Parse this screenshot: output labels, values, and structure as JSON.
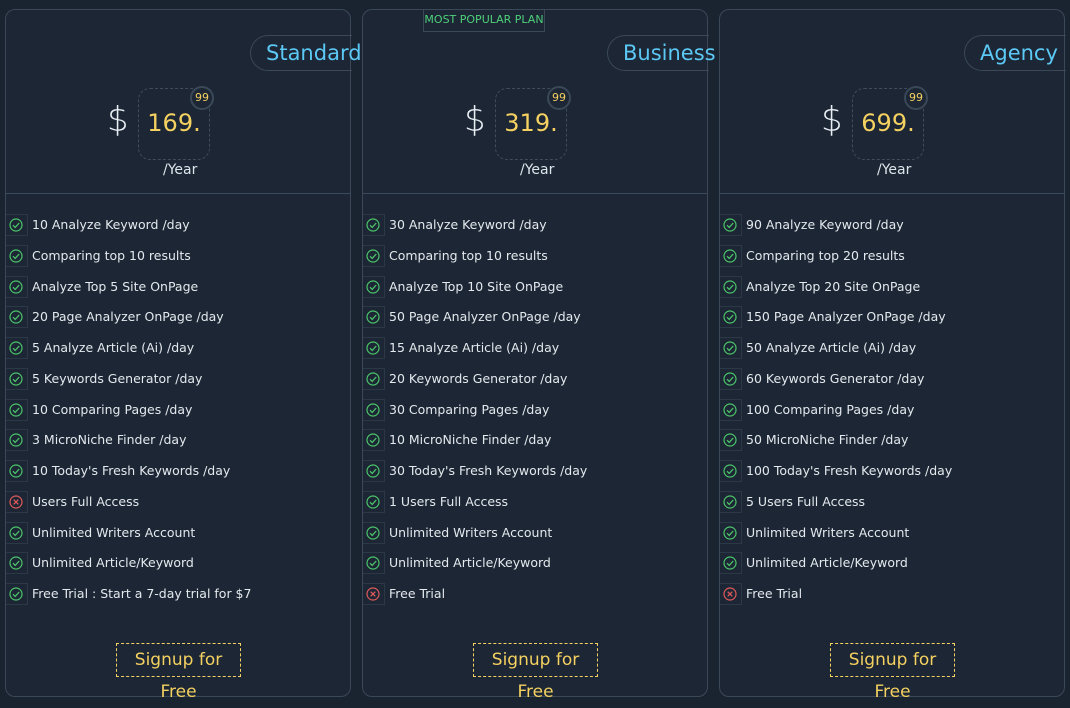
{
  "badge": "MOST POPULAR PLAN",
  "badge_plan": 1,
  "plans": [
    {
      "name": "Standard",
      "currency": "$",
      "price": "169.",
      "cents": "99",
      "period": "/Year",
      "button": "Signup for Free",
      "features": [
        {
          "text": "10 Analyze Keyword /day",
          "included": true
        },
        {
          "text": "Comparing top 10 results",
          "included": true
        },
        {
          "text": "Analyze Top 5 Site OnPage",
          "included": true
        },
        {
          "text": "20 Page Analyzer OnPage /day",
          "included": true
        },
        {
          "text": "5 Analyze Article (Ai) /day",
          "included": true
        },
        {
          "text": "5 Keywords Generator /day",
          "included": true
        },
        {
          "text": "10 Comparing Pages /day",
          "included": true
        },
        {
          "text": "3 MicroNiche Finder /day",
          "included": true
        },
        {
          "text": "10 Today's Fresh Keywords /day",
          "included": true
        },
        {
          "text": "Users Full Access",
          "included": false
        },
        {
          "text": "Unlimited Writers Account",
          "included": true
        },
        {
          "text": "Unlimited Article/Keyword",
          "included": true
        },
        {
          "text": "Free Trial : Start a 7-day trial for $7",
          "included": true
        }
      ]
    },
    {
      "name": "Business",
      "currency": "$",
      "price": "319.",
      "cents": "99",
      "period": "/Year",
      "button": "Signup for Free",
      "features": [
        {
          "text": "30 Analyze Keyword /day",
          "included": true
        },
        {
          "text": "Comparing top 10 results",
          "included": true
        },
        {
          "text": "Analyze Top 10 Site OnPage",
          "included": true
        },
        {
          "text": "50 Page Analyzer OnPage /day",
          "included": true
        },
        {
          "text": "15 Analyze Article (Ai) /day",
          "included": true
        },
        {
          "text": "20 Keywords Generator /day",
          "included": true
        },
        {
          "text": "30 Comparing Pages /day",
          "included": true
        },
        {
          "text": "10 MicroNiche Finder /day",
          "included": true
        },
        {
          "text": "30 Today's Fresh Keywords /day",
          "included": true
        },
        {
          "text": "1 Users Full Access",
          "included": true
        },
        {
          "text": "Unlimited Writers Account",
          "included": true
        },
        {
          "text": "Unlimited Article/Keyword",
          "included": true
        },
        {
          "text": "Free Trial",
          "included": false
        }
      ]
    },
    {
      "name": "Agency",
      "currency": "$",
      "price": "699.",
      "cents": "99",
      "period": "/Year",
      "button": "Signup for Free",
      "features": [
        {
          "text": "90 Analyze Keyword /day",
          "included": true
        },
        {
          "text": "Comparing top 20 results",
          "included": true
        },
        {
          "text": "Analyze Top 20 Site OnPage",
          "included": true
        },
        {
          "text": "150 Page Analyzer OnPage /day",
          "included": true
        },
        {
          "text": "50 Analyze Article (Ai) /day",
          "included": true
        },
        {
          "text": "60 Keywords Generator /day",
          "included": true
        },
        {
          "text": "100 Comparing Pages /day",
          "included": true
        },
        {
          "text": "50 MicroNiche Finder /day",
          "included": true
        },
        {
          "text": "100 Today's Fresh Keywords /day",
          "included": true
        },
        {
          "text": "5 Users Full Access",
          "included": true
        },
        {
          "text": "Unlimited Writers Account",
          "included": true
        },
        {
          "text": "Unlimited Article/Keyword",
          "included": true
        },
        {
          "text": "Free Trial",
          "included": false
        }
      ]
    }
  ]
}
